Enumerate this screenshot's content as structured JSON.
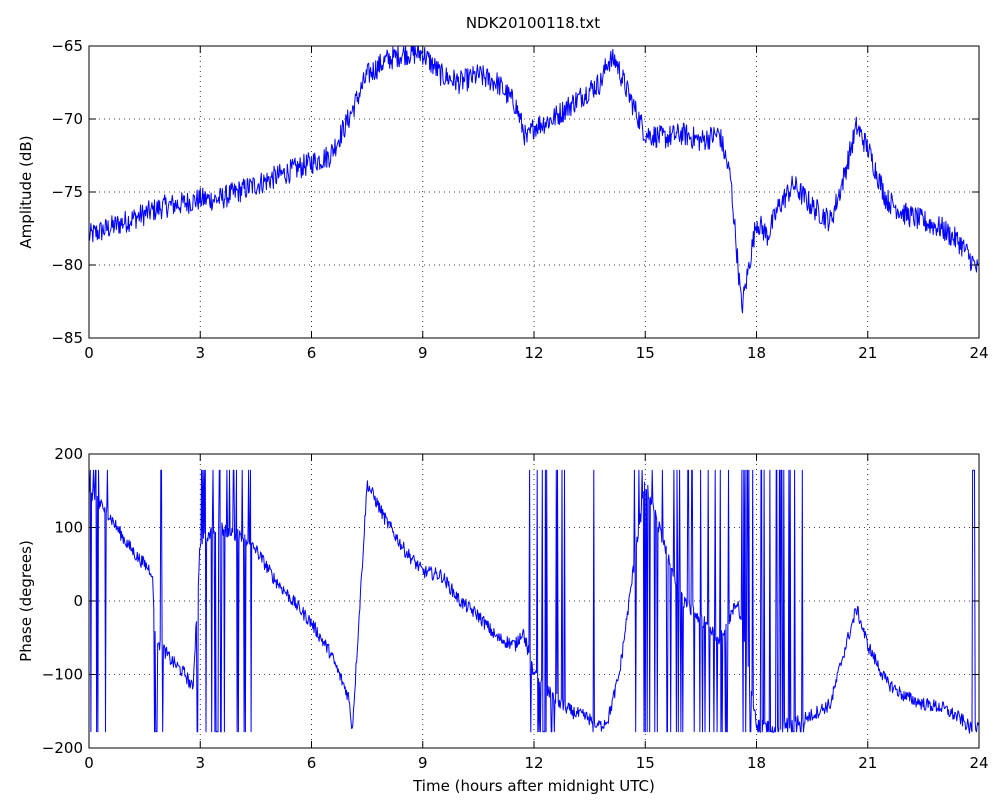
{
  "chart_data": [
    {
      "type": "line",
      "title": "NDK20100118.txt",
      "xlabel": "",
      "ylabel": "Amplitude (dB)",
      "xlim": [
        0,
        24
      ],
      "ylim": [
        -85,
        -65
      ],
      "xticks": [
        0,
        3,
        6,
        9,
        12,
        15,
        18,
        21,
        24
      ],
      "yticks": [
        -85,
        -80,
        -75,
        -70,
        -65
      ],
      "grid": true,
      "color": "#0000ff",
      "series": [
        {
          "x": [
            0,
            0.5,
            1,
            1.5,
            2,
            2.5,
            3,
            3.5,
            4,
            4.5,
            5,
            5.5,
            6,
            6.5,
            7,
            7.5,
            8,
            8.5,
            9,
            9.5,
            10,
            10.5,
            11,
            11.5,
            11.8,
            12,
            12.5,
            13,
            13.5,
            13.8,
            14,
            14.2,
            14.5,
            15,
            15.5,
            16,
            16.5,
            17,
            17.3,
            17.6,
            18,
            18.3,
            18.6,
            19,
            19.5,
            20,
            20.3,
            20.7,
            21,
            21.5,
            22,
            22.5,
            23,
            23.5,
            24
          ],
          "y": [
            -78,
            -77.5,
            -77,
            -76.5,
            -76,
            -75.8,
            -75.5,
            -75.5,
            -75,
            -74.5,
            -74,
            -73.5,
            -73,
            -72.5,
            -70,
            -67,
            -66,
            -65.5,
            -65.5,
            -67,
            -67.5,
            -67,
            -67.5,
            -69,
            -71.5,
            -70.5,
            -70,
            -69,
            -68,
            -67.5,
            -66,
            -66,
            -68,
            -71,
            -71.3,
            -71,
            -71.5,
            -71,
            -74,
            -83,
            -77,
            -78,
            -76,
            -74.5,
            -76,
            -77,
            -74.5,
            -70.5,
            -72,
            -75.5,
            -76.5,
            -77,
            -77.5,
            -78.5,
            -80.5
          ]
        }
      ]
    },
    {
      "type": "line",
      "title": "",
      "xlabel": "Time (hours after midnight UTC)",
      "ylabel": "Phase (degrees)",
      "xlim": [
        0,
        24
      ],
      "ylim": [
        -200,
        200
      ],
      "xticks": [
        0,
        3,
        6,
        9,
        12,
        15,
        18,
        21,
        24
      ],
      "yticks": [
        -200,
        -100,
        0,
        100,
        200
      ],
      "grid": true,
      "color": "#0000ff",
      "series": [
        {
          "x": [
            0,
            0.5,
            1,
            1.3,
            1.7,
            1.8,
            2.2,
            2.6,
            2.8,
            3.0,
            3.5,
            4.0,
            4.5,
            5.0,
            5.5,
            6.0,
            6.5,
            7.0,
            7.1,
            7.5,
            8.0,
            8.5,
            9.0,
            9.5,
            10.0,
            10.5,
            11.0,
            11.5,
            11.7,
            12.0,
            12.5,
            13.0,
            13.5,
            13.8,
            14.0,
            14.3,
            14.7,
            15.0,
            16.0,
            17.0,
            17.5,
            18.0,
            18.5,
            19.0,
            19.3,
            19.5,
            20.0,
            20.3,
            20.7,
            21.0,
            21.5,
            22.0,
            22.5,
            23.0,
            23.5,
            23.8,
            24.0
          ],
          "y": [
            150,
            120,
            80,
            60,
            40,
            -50,
            -80,
            -100,
            -120,
            80,
            100,
            90,
            70,
            30,
            0,
            -30,
            -70,
            -130,
            -175,
            160,
            110,
            70,
            40,
            35,
            0,
            -20,
            -50,
            -60,
            -40,
            -100,
            -130,
            -150,
            -160,
            -170,
            -160,
            -100,
            50,
            160,
            0,
            -50,
            0,
            -170,
            -170,
            -165,
            -160,
            -155,
            -140,
            -80,
            -10,
            -60,
            -110,
            -130,
            -140,
            -145,
            -160,
            -175,
            -170
          ]
        }
      ]
    }
  ]
}
